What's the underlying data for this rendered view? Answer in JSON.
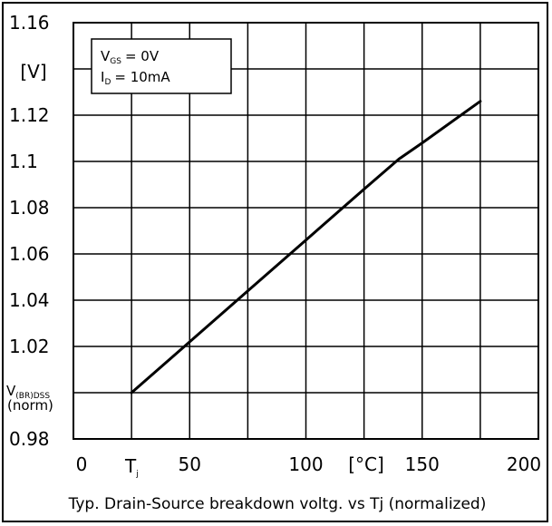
{
  "chart_data": {
    "type": "line",
    "caption": "Typ. Drain-Source breakdown voltg. vs Tj (normalized)",
    "ylabel_main": "V",
    "ylabel_sub": "(BR)DSS",
    "ylabel_norm": "(norm)",
    "y_unit": "[V]",
    "x_unit": "[°C]",
    "xlabel_main": "T",
    "xlabel_sub": "j",
    "legend": {
      "line1_main": "V",
      "line1_sub": "GS",
      "line1_value": "= 0V",
      "line2_main": "I",
      "line2_sub": "D",
      "line2_value": "= 10mA"
    },
    "xlim": [
      0,
      200
    ],
    "ylim": [
      0.98,
      1.16
    ],
    "x_ticks": [
      {
        "value": 0,
        "label": "0"
      },
      {
        "value": 50,
        "label": "50"
      },
      {
        "value": 100,
        "label": "100"
      },
      {
        "value": 150,
        "label": "150"
      },
      {
        "value": 200,
        "label": "200"
      }
    ],
    "y_ticks": [
      {
        "value": 0.98,
        "label": "0.98"
      },
      {
        "value": 1.02,
        "label": "1.02"
      },
      {
        "value": 1.04,
        "label": "1.04"
      },
      {
        "value": 1.06,
        "label": "1.06"
      },
      {
        "value": 1.08,
        "label": "1.08"
      },
      {
        "value": 1.1,
        "label": "1.1"
      },
      {
        "value": 1.12,
        "label": "1.12"
      },
      {
        "value": 1.16,
        "label": "1.16"
      }
    ],
    "grid": true,
    "grid_x_step": 25,
    "grid_y_step": 0.02,
    "series": [
      {
        "x": [
          25,
          50,
          75,
          100,
          125,
          140,
          150,
          175
        ],
        "y": [
          1.0,
          1.022,
          1.044,
          1.066,
          1.088,
          1.101,
          1.108,
          1.126
        ]
      }
    ]
  }
}
